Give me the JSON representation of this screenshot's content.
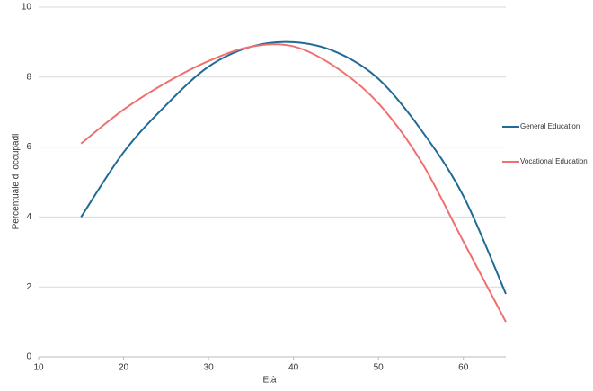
{
  "chart_data": {
    "type": "line",
    "x_label": "Età",
    "y_label": "Percentuale di occupadi",
    "x": [
      15,
      20,
      25,
      30,
      35,
      40,
      45,
      50,
      55,
      60,
      65
    ],
    "series": [
      {
        "name": "General Education",
        "color": "#1f6b96",
        "values": [
          4.0,
          5.85,
          7.2,
          8.3,
          8.87,
          9.0,
          8.72,
          7.95,
          6.5,
          4.6,
          1.8
        ]
      },
      {
        "name": "Vocational Education",
        "color": "#f07070",
        "values": [
          6.1,
          7.07,
          7.84,
          8.46,
          8.87,
          8.88,
          8.28,
          7.25,
          5.6,
          3.3,
          1.0
        ]
      }
    ],
    "xlim": [
      10,
      65
    ],
    "xticks": [
      10,
      20,
      30,
      40,
      50,
      60
    ],
    "ylim": [
      0,
      10
    ],
    "yticks": [
      0,
      2,
      4,
      6,
      8,
      10
    ],
    "grid": true,
    "legend": "right"
  }
}
